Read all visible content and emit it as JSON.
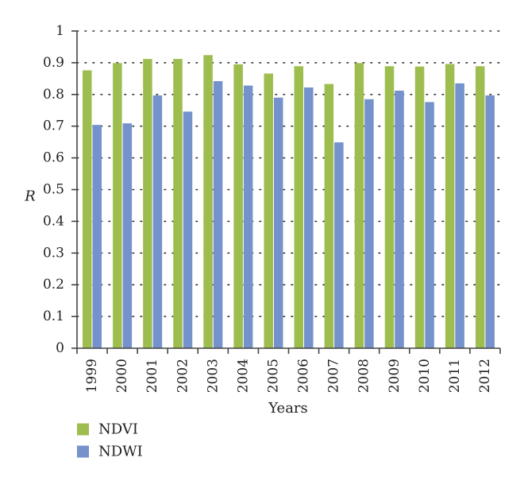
{
  "chart_data": {
    "type": "bar",
    "categories": [
      "1999",
      "2000",
      "2001",
      "2002",
      "2003",
      "2004",
      "2005",
      "2006",
      "2007",
      "2008",
      "2009",
      "2010",
      "2011",
      "2012"
    ],
    "series": [
      {
        "name": "NDVI",
        "color": "#9ebd4f",
        "values": [
          0.876,
          0.899,
          0.912,
          0.912,
          0.924,
          0.895,
          0.866,
          0.889,
          0.833,
          0.899,
          0.889,
          0.888,
          0.896,
          0.889
        ]
      },
      {
        "name": "NDWI",
        "color": "#7592cc",
        "values": [
          0.704,
          0.709,
          0.797,
          0.746,
          0.842,
          0.828,
          0.79,
          0.822,
          0.649,
          0.785,
          0.812,
          0.776,
          0.835,
          0.797
        ]
      }
    ],
    "xlabel": "Years",
    "ylabel": "R",
    "ylim": [
      0,
      1
    ],
    "yticks": [
      "0",
      "0.1",
      "0.2",
      "0.3",
      "0.4",
      "0.5",
      "0.6",
      "0.7",
      "0.8",
      "0.9",
      "1"
    ],
    "grid": true,
    "legend_position": "bottom-left"
  }
}
